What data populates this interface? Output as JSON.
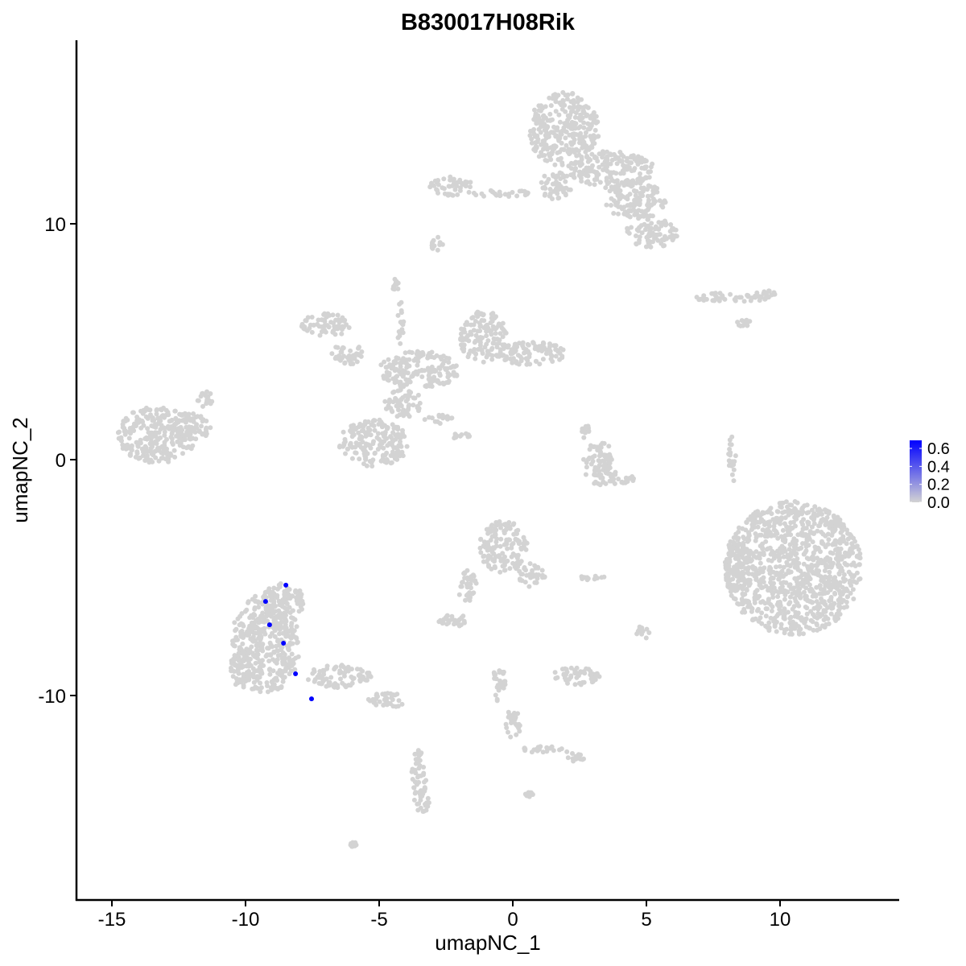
{
  "chart_data": {
    "type": "scatter",
    "title": "B830017H08Rik",
    "xlabel": "umapNC_1",
    "ylabel": "umapNC_2",
    "xlim": [
      -16.3,
      14.4
    ],
    "ylim": [
      -18.5,
      17.9
    ],
    "xticks": [
      -15,
      -10,
      -5,
      0,
      5,
      10
    ],
    "yticks": [
      -10,
      0,
      10
    ],
    "grid": false,
    "background_color": "#D3D3D3",
    "expressing_cells": {
      "color": "#0000FF",
      "points": [
        {
          "x": -8.49,
          "y": -5.32
        },
        {
          "x": -9.25,
          "y": -6.01
        },
        {
          "x": -9.1,
          "y": -7.0
        },
        {
          "x": -8.58,
          "y": -7.78
        },
        {
          "x": -8.13,
          "y": -9.08
        },
        {
          "x": -7.53,
          "y": -10.14
        }
      ]
    },
    "background_clusters": [
      [
        -13.3,
        1.06,
        1.5,
        1.2
      ],
      [
        -12.1,
        1.4,
        0.8,
        0.6
      ],
      [
        -11.5,
        2.6,
        0.3,
        0.4
      ],
      [
        1.9,
        14.0,
        1.35,
        1.6
      ],
      [
        4.6,
        11.0,
        1.2,
        0.8
      ],
      [
        5.2,
        9.6,
        1.0,
        0.6
      ],
      [
        3.7,
        12.3,
        1.6,
        0.8
      ],
      [
        -2.3,
        11.6,
        0.8,
        0.4
      ],
      [
        -0.5,
        11.3,
        1.2,
        0.15
      ],
      [
        1.6,
        11.6,
        0.6,
        0.6
      ],
      [
        -7.0,
        5.7,
        0.9,
        0.5
      ],
      [
        -6.2,
        4.5,
        0.6,
        0.5
      ],
      [
        -3.5,
        3.8,
        1.5,
        0.8
      ],
      [
        -1.1,
        5.2,
        0.9,
        1.1
      ],
      [
        0.7,
        4.5,
        1.3,
        0.5
      ],
      [
        -4.1,
        2.4,
        0.7,
        0.6
      ],
      [
        -5.2,
        0.7,
        1.3,
        1.0
      ],
      [
        -2.8,
        1.7,
        0.6,
        0.2
      ],
      [
        -1.8,
        1.0,
        0.5,
        0.15
      ],
      [
        -4.4,
        7.4,
        0.15,
        0.25
      ],
      [
        -4.2,
        5.8,
        0.12,
        1.0
      ],
      [
        8.2,
        6.9,
        1.6,
        0.2
      ],
      [
        9.4,
        7.0,
        0.5,
        0.2
      ],
      [
        8.6,
        5.8,
        0.3,
        0.15
      ],
      [
        3.25,
        0.03,
        0.6,
        0.7
      ],
      [
        3.55,
        -0.8,
        1.0,
        0.3
      ],
      [
        2.7,
        1.2,
        0.2,
        0.3
      ],
      [
        10.5,
        -4.6,
        2.55,
        2.85
      ],
      [
        8.2,
        0.0,
        0.15,
        1.0
      ],
      [
        8.4,
        -4.5,
        0.5,
        1.2
      ],
      [
        -9.25,
        -7.8,
        1.3,
        2.1
      ],
      [
        -10.1,
        -8.9,
        0.5,
        0.8
      ],
      [
        -6.5,
        -9.2,
        1.2,
        0.5
      ],
      [
        -4.7,
        -10.2,
        0.8,
        0.3
      ],
      [
        -3.5,
        -13.3,
        0.3,
        1.0
      ],
      [
        -3.4,
        -14.5,
        0.3,
        0.5
      ],
      [
        -8.6,
        -6.0,
        0.8,
        0.8
      ],
      [
        -0.35,
        -3.7,
        0.9,
        1.1
      ],
      [
        0.7,
        -4.9,
        0.5,
        0.5
      ],
      [
        -1.7,
        -5.4,
        0.35,
        0.7
      ],
      [
        -2.3,
        -6.8,
        0.6,
        0.3
      ],
      [
        2.35,
        -9.2,
        0.9,
        0.4
      ],
      [
        -0.5,
        -9.5,
        0.25,
        0.8
      ],
      [
        0.0,
        -11.2,
        0.3,
        0.6
      ],
      [
        1.3,
        -12.3,
        1.0,
        0.15
      ],
      [
        2.35,
        -12.6,
        0.35,
        0.2
      ],
      [
        4.9,
        -7.3,
        0.3,
        0.3
      ],
      [
        2.95,
        -5.0,
        0.5,
        0.1
      ],
      [
        -2.8,
        9.1,
        0.25,
        0.35
      ],
      [
        -6.0,
        -16.3,
        0.15,
        0.1
      ],
      [
        0.6,
        -14.2,
        0.15,
        0.1
      ]
    ],
    "legend": {
      "placement": "right",
      "low_color": "#D3D3D3",
      "high_color": "#0000FF",
      "range": [
        0,
        0.69
      ],
      "ticks": [
        "0.6",
        "0.4",
        "0.2",
        "0.0"
      ],
      "tick_values": [
        0.6,
        0.4,
        0.2,
        0.0
      ]
    }
  }
}
